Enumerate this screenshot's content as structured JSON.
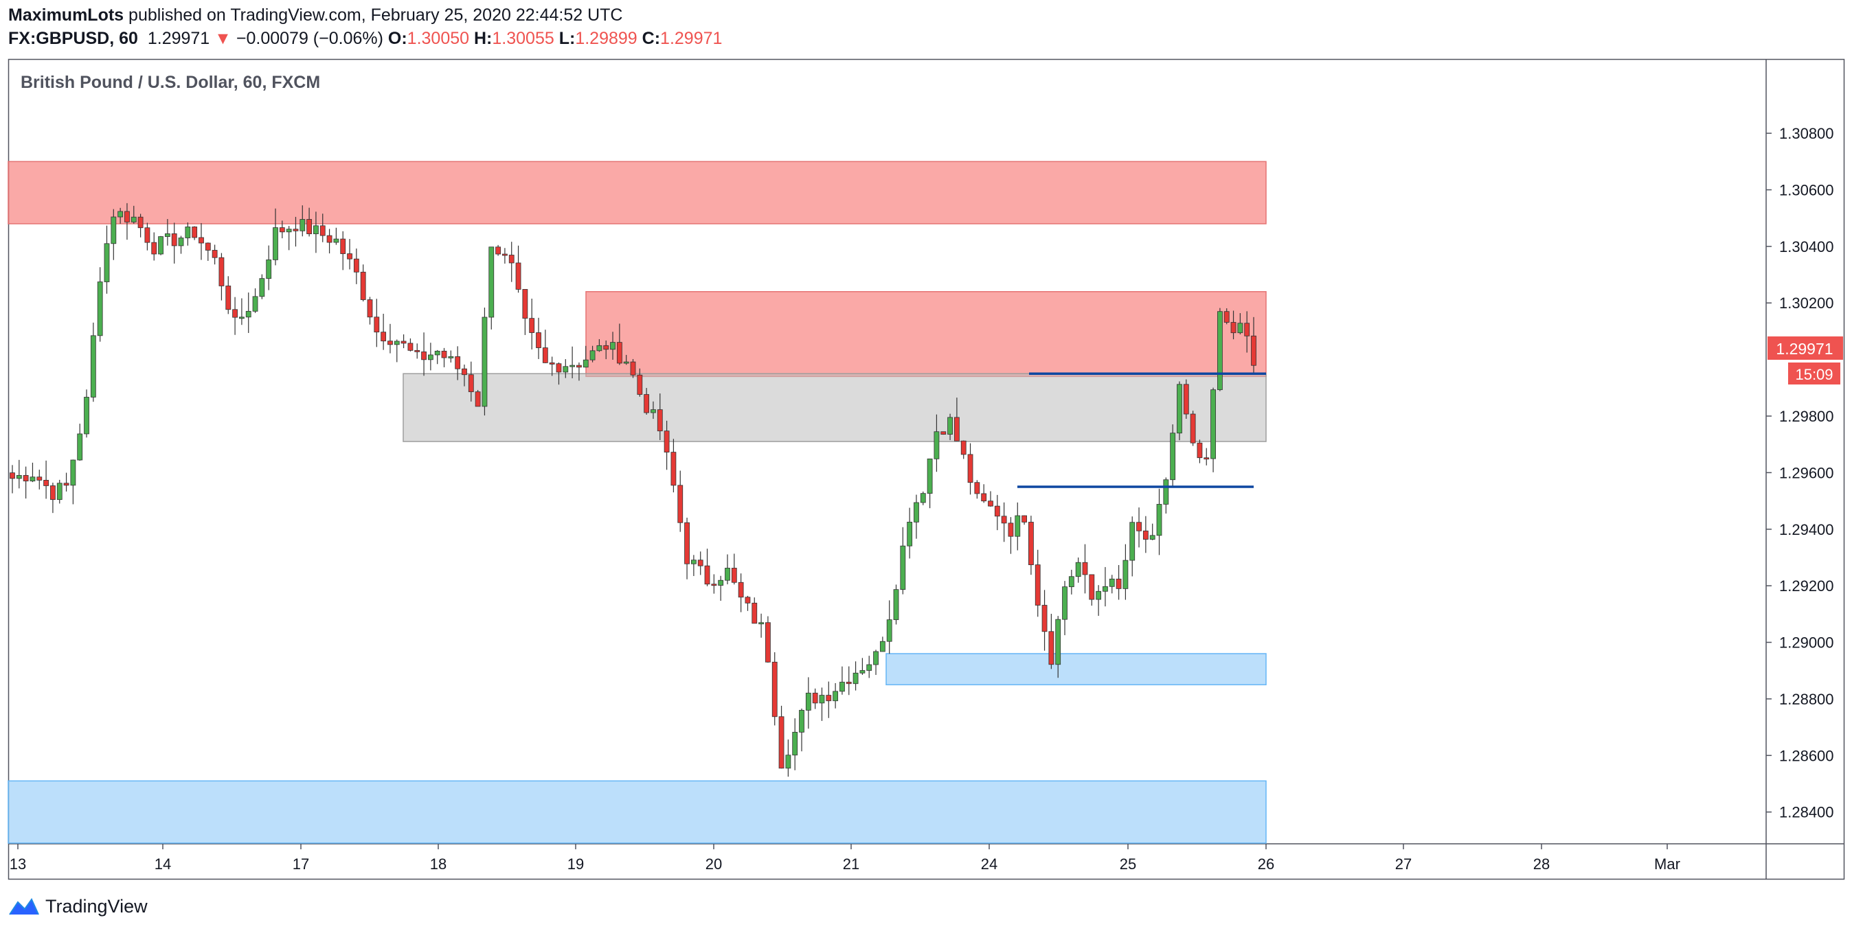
{
  "header": {
    "author": "MaximumLots",
    "published_text": "published on TradingView.com, February 25, 2020 22:44:52 UTC",
    "symbol": "FX:GBPUSD, 60",
    "last": "1.29971",
    "change_arrow": "▼",
    "change": "−0.00079 (−0.06%)",
    "open_label": "O:",
    "open": "1.30050",
    "high_label": "H:",
    "high": "1.30055",
    "low_label": "L:",
    "low": "1.29899",
    "close_label": "C:",
    "close": "1.29971"
  },
  "legend": {
    "title": "British Pound / U.S. Dollar, 60, FXCM"
  },
  "price_tag": {
    "value": "1.29971",
    "countdown": "15:09"
  },
  "brand": {
    "name": "TradingView",
    "icon": "tradingview-logo-icon"
  },
  "colors": {
    "up": "#26a69a",
    "down": "#ef5350",
    "up_body": "#4caf50",
    "down_body": "#e53935",
    "supply": "#f7706c",
    "demand": "#90caf9",
    "neutral": "#bdbdbd",
    "line": "#0d47a1"
  },
  "chart_data": {
    "type": "candlestick",
    "title": "British Pound / U.S. Dollar, 60, FXCM",
    "y_ticks": [
      "1.30800",
      "1.30600",
      "1.30400",
      "1.30200",
      "1.29800",
      "1.29600",
      "1.29400",
      "1.29200",
      "1.29000",
      "1.28800",
      "1.28600",
      "1.28400"
    ],
    "ylim": [
      1.2829,
      1.3106
    ],
    "x_ticks": [
      "13",
      "14",
      "17",
      "18",
      "19",
      "20",
      "21",
      "24",
      "25",
      "26",
      "27",
      "28",
      "Mar"
    ],
    "zones": [
      {
        "kind": "supply",
        "from": "13",
        "to": "26",
        "low": 1.3048,
        "high": 1.307
      },
      {
        "kind": "supply",
        "from": "19",
        "to": "26",
        "low": 1.2994,
        "high": 1.3024
      },
      {
        "kind": "neutral",
        "from": "18",
        "to": "26",
        "low": 1.2971,
        "high": 1.2995
      },
      {
        "kind": "demand",
        "from": "21",
        "to": "26",
        "low": 1.2885,
        "high": 1.2896
      },
      {
        "kind": "demand",
        "from": "13",
        "to": "26",
        "low": 1.2829,
        "high": 1.2851
      }
    ],
    "lines": [
      {
        "from": "24",
        "to": "26",
        "price": 1.2995
      },
      {
        "from": "24",
        "to": "26",
        "price": 1.2955
      }
    ],
    "waypoints": [
      [
        0,
        1.2958
      ],
      [
        3,
        1.296
      ],
      [
        6,
        1.2953
      ],
      [
        8,
        1.2955
      ],
      [
        11,
        1.2985
      ],
      [
        13,
        1.303
      ],
      [
        15,
        1.3052
      ],
      [
        18,
        1.305
      ],
      [
        21,
        1.304
      ],
      [
        27,
        1.3045
      ],
      [
        30,
        1.3035
      ],
      [
        33,
        1.3012
      ],
      [
        36,
        1.3022
      ],
      [
        39,
        1.3045
      ],
      [
        42,
        1.3048
      ],
      [
        45,
        1.3045
      ],
      [
        48,
        1.3042
      ],
      [
        51,
        1.303
      ],
      [
        54,
        1.301
      ],
      [
        57,
        1.3007
      ],
      [
        60,
        1.3
      ],
      [
        63,
        1.3003
      ],
      [
        67,
        1.2995
      ],
      [
        69,
        1.2985
      ],
      [
        71,
        1.3042
      ],
      [
        74,
        1.3032
      ],
      [
        76,
        1.3012
      ],
      [
        79,
        1.2998
      ],
      [
        84,
        1.2999
      ],
      [
        88,
        1.3005
      ],
      [
        91,
        1.3
      ],
      [
        93,
        1.2988
      ],
      [
        96,
        1.2975
      ],
      [
        98,
        1.2955
      ],
      [
        100,
        1.293
      ],
      [
        103,
        1.2922
      ],
      [
        106,
        1.2925
      ],
      [
        108,
        1.2915
      ],
      [
        111,
        1.2905
      ],
      [
        112,
        1.2895
      ],
      [
        114,
        1.2858
      ],
      [
        116,
        1.2868
      ],
      [
        118,
        1.288
      ],
      [
        121,
        1.2882
      ],
      [
        125,
        1.289
      ],
      [
        128,
        1.2895
      ],
      [
        130,
        1.291
      ],
      [
        133,
        1.2945
      ],
      [
        135,
        1.2955
      ],
      [
        137,
        1.2975
      ],
      [
        139,
        1.2978
      ],
      [
        141,
        1.2965
      ],
      [
        143,
        1.295
      ],
      [
        146,
        1.2946
      ],
      [
        148,
        1.294
      ],
      [
        150,
        1.2945
      ],
      [
        152,
        1.2915
      ],
      [
        154,
        1.2895
      ],
      [
        156,
        1.292
      ],
      [
        158,
        1.2928
      ],
      [
        160,
        1.2915
      ],
      [
        162,
        1.2922
      ],
      [
        164,
        1.2918
      ],
      [
        166,
        1.294
      ],
      [
        169,
        1.2935
      ],
      [
        171,
        1.2958
      ],
      [
        173,
        1.299
      ],
      [
        175,
        1.2968
      ],
      [
        177,
        1.2962
      ],
      [
        179,
        1.3015
      ],
      [
        181,
        1.3012
      ],
      [
        183,
        1.3008
      ],
      [
        184,
        1.2997
      ]
    ]
  }
}
